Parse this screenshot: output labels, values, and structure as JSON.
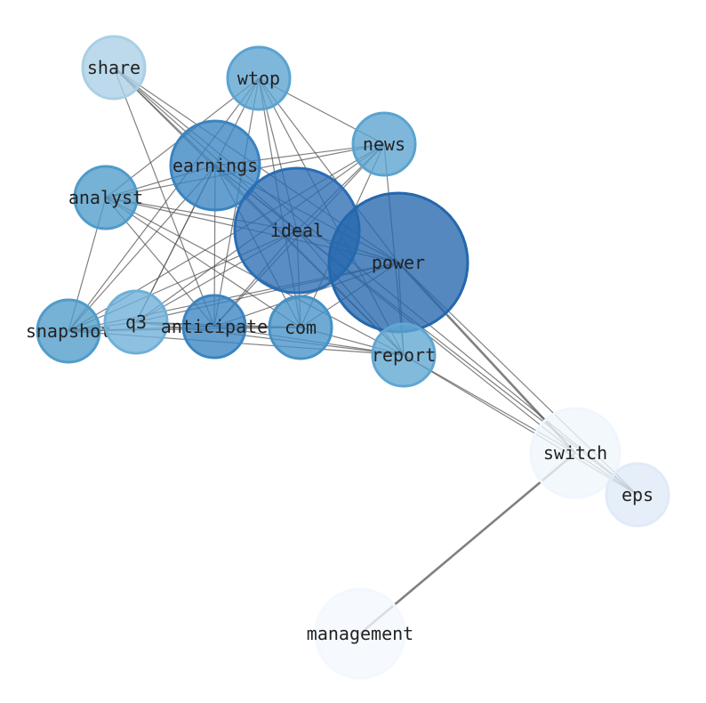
{
  "nodes": [
    {
      "id": "share",
      "label": "share",
      "color": "#a9cfe5"
    },
    {
      "id": "wtop",
      "label": "wtop",
      "color": "#5ba3d0"
    },
    {
      "id": "news",
      "label": "news",
      "color": "#5ba3d0"
    },
    {
      "id": "earnings",
      "label": "earnings",
      "color": "#3a84c1"
    },
    {
      "id": "analyst",
      "label": "analyst",
      "color": "#4f9bcb"
    },
    {
      "id": "ideal",
      "label": "ideal",
      "color": "#2a6db3"
    },
    {
      "id": "power",
      "label": "power",
      "color": "#2467ad"
    },
    {
      "id": "snapshot",
      "label": "snapshot",
      "color": "#4f9bcb"
    },
    {
      "id": "q3",
      "label": "q3",
      "color": "#6eb0d8"
    },
    {
      "id": "anticipate",
      "label": "anticipate",
      "color": "#3a84c1"
    },
    {
      "id": "com",
      "label": "com",
      "color": "#4592c6"
    },
    {
      "id": "report",
      "label": "report",
      "color": "#5fa6d2"
    },
    {
      "id": "switch",
      "label": "switch",
      "color": "#f0f6fd"
    },
    {
      "id": "eps",
      "label": "eps",
      "color": "#dfebf7"
    },
    {
      "id": "management",
      "label": "management",
      "color": "#f3f8fe"
    }
  ],
  "edges": [
    [
      "share",
      "ideal"
    ],
    [
      "share",
      "power"
    ],
    [
      "share",
      "report"
    ],
    [
      "share",
      "anticipate"
    ],
    [
      "share",
      "eps"
    ],
    [
      "share",
      "earnings"
    ],
    [
      "wtop",
      "analyst"
    ],
    [
      "wtop",
      "news"
    ],
    [
      "wtop",
      "snapshot"
    ],
    [
      "wtop",
      "q3"
    ],
    [
      "wtop",
      "anticipate"
    ],
    [
      "wtop",
      "com"
    ],
    [
      "wtop",
      "ideal"
    ],
    [
      "wtop",
      "power"
    ],
    [
      "wtop",
      "report"
    ],
    [
      "news",
      "analyst"
    ],
    [
      "news",
      "earnings"
    ],
    [
      "news",
      "snapshot"
    ],
    [
      "news",
      "q3"
    ],
    [
      "news",
      "anticipate"
    ],
    [
      "news",
      "com"
    ],
    [
      "news",
      "ideal"
    ],
    [
      "news",
      "report"
    ],
    [
      "earnings",
      "analyst"
    ],
    [
      "earnings",
      "snapshot"
    ],
    [
      "earnings",
      "q3"
    ],
    [
      "earnings",
      "anticipate"
    ],
    [
      "earnings",
      "com"
    ],
    [
      "earnings",
      "ideal"
    ],
    [
      "earnings",
      "power"
    ],
    [
      "earnings",
      "report"
    ],
    [
      "earnings",
      "switch"
    ],
    [
      "analyst",
      "snapshot"
    ],
    [
      "analyst",
      "anticipate"
    ],
    [
      "analyst",
      "com"
    ],
    [
      "analyst",
      "ideal"
    ],
    [
      "analyst",
      "power"
    ],
    [
      "analyst",
      "report"
    ],
    [
      "ideal",
      "snapshot"
    ],
    [
      "ideal",
      "q3"
    ],
    [
      "ideal",
      "anticipate"
    ],
    [
      "ideal",
      "com"
    ],
    [
      "ideal",
      "power"
    ],
    [
      "ideal",
      "report"
    ],
    [
      "ideal",
      "eps"
    ],
    [
      "power",
      "snapshot"
    ],
    [
      "power",
      "q3"
    ],
    [
      "power",
      "anticipate"
    ],
    [
      "power",
      "com"
    ],
    [
      "power",
      "report"
    ],
    [
      "power",
      "switch"
    ],
    [
      "power",
      "eps"
    ],
    [
      "snapshot",
      "q3"
    ],
    [
      "snapshot",
      "anticipate"
    ],
    [
      "snapshot",
      "com"
    ],
    [
      "snapshot",
      "report"
    ],
    [
      "q3",
      "anticipate"
    ],
    [
      "q3",
      "com"
    ],
    [
      "q3",
      "report"
    ],
    [
      "anticipate",
      "com"
    ],
    [
      "anticipate",
      "report"
    ],
    [
      "com",
      "report"
    ],
    [
      "report",
      "switch"
    ],
    [
      "report",
      "eps"
    ],
    [
      "switch",
      "management"
    ],
    [
      "switch",
      "eps"
    ]
  ],
  "heavy_edges": [
    [
      "power",
      "switch"
    ],
    [
      "switch",
      "management"
    ]
  ],
  "edge_color": "#555555"
}
